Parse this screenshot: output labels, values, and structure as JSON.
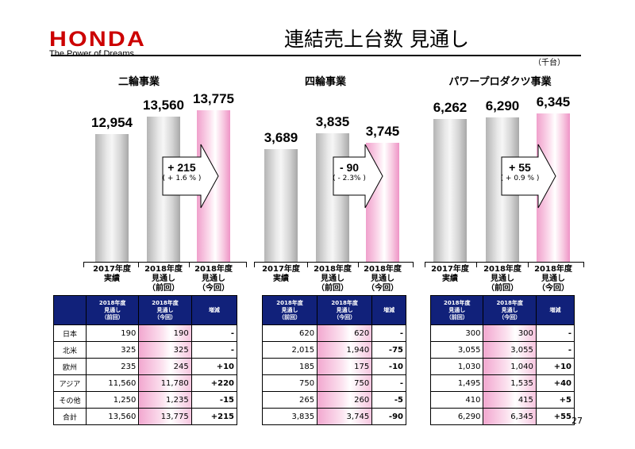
{
  "header": {
    "logo": "HONDA",
    "tagline": "The Power of Dreams",
    "title": "連結売上台数 見通し",
    "unit": "（千台）",
    "page_number": "27"
  },
  "chart_data": [
    {
      "type": "bar",
      "title": "二輪事業",
      "categories": [
        "2017年度\n実績",
        "2018年度\n見通し\n（前回）",
        "2018年度\n見通し\n（今回）"
      ],
      "values": [
        12954,
        13560,
        13775
      ],
      "value_labels": [
        "12,954",
        "13,560",
        "13,775"
      ],
      "change": "+ 215",
      "change_pct": "( + 1.6 % )",
      "ylim": [
        0,
        13775
      ]
    },
    {
      "type": "bar",
      "title": "四輪事業",
      "categories": [
        "2017年度\n実績",
        "2018年度\n見通し\n（前回）",
        "2018年度\n見通し\n（今回）"
      ],
      "values": [
        3689,
        3835,
        3745
      ],
      "value_labels": [
        "3,689",
        "3,835",
        "3,745"
      ],
      "change": "- 90",
      "change_pct": "( - 2.3% )",
      "ylim": [
        0,
        3835
      ]
    },
    {
      "type": "bar",
      "title": "パワープロダクツ事業",
      "categories": [
        "2017年度\n実績",
        "2018年度\n見通し\n（前回）",
        "2018年度\n見通し\n（今回）"
      ],
      "values": [
        6262,
        6290,
        6345
      ],
      "value_labels": [
        "6,262",
        "6,290",
        "6,345"
      ],
      "change": "+ 55",
      "change_pct": "( + 0.9 % )",
      "ylim": [
        0,
        6345
      ]
    }
  ],
  "tables": {
    "regions": [
      "日本",
      "北米",
      "欧州",
      "アジア",
      "その他",
      "合計"
    ],
    "headers": [
      "2018年度\n見通し\n（前回）",
      "2018年度\n見通し\n（今回）",
      "増減"
    ],
    "motorcycle": [
      [
        "190",
        "190",
        "-"
      ],
      [
        "325",
        "325",
        "-"
      ],
      [
        "235",
        "245",
        "+10"
      ],
      [
        "11,560",
        "11,780",
        "+220"
      ],
      [
        "1,250",
        "1,235",
        "-15"
      ],
      [
        "13,560",
        "13,775",
        "+215"
      ]
    ],
    "automobile": [
      [
        "620",
        "620",
        "-"
      ],
      [
        "2,015",
        "1,940",
        "-75"
      ],
      [
        "185",
        "175",
        "-10"
      ],
      [
        "750",
        "750",
        "-"
      ],
      [
        "265",
        "260",
        "-5"
      ],
      [
        "3,835",
        "3,745",
        "-90"
      ]
    ],
    "power_products": [
      [
        "300",
        "300",
        "-"
      ],
      [
        "3,055",
        "3,055",
        "-"
      ],
      [
        "1,030",
        "1,040",
        "+10"
      ],
      [
        "1,495",
        "1,535",
        "+40"
      ],
      [
        "410",
        "415",
        "+5"
      ],
      [
        "6,290",
        "6,345",
        "+55"
      ]
    ]
  },
  "colors": {
    "brand_red": "#cc0000",
    "table_header": "#11217a",
    "pink_bar": "#f0a0cc"
  }
}
